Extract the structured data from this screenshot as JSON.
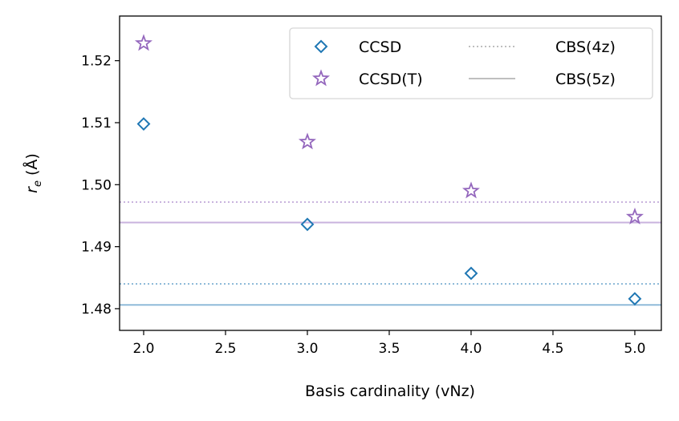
{
  "chart_data": {
    "type": "scatter",
    "xlabel": "Basis cardinality (vNz)",
    "ylabel": "r_e (Å)",
    "xlim": [
      1.853,
      5.162
    ],
    "ylim": [
      1.4765,
      1.5272
    ],
    "xticks": [
      "2.0",
      "2.5",
      "3.0",
      "3.5",
      "4.0",
      "4.5",
      "5.0"
    ],
    "yticks": [
      "1.48",
      "1.49",
      "1.50",
      "1.51",
      "1.52"
    ],
    "grid": false,
    "legend_position": "top-right",
    "series": [
      {
        "name": "CCSD",
        "marker": "diamond",
        "color": "#1f77b4",
        "x": [
          2,
          3,
          4,
          5
        ],
        "y": [
          1.5098,
          1.4936,
          1.4857,
          1.4816
        ]
      },
      {
        "name": "CCSD(T)",
        "marker": "star",
        "color": "#9467bd",
        "x": [
          2,
          3,
          4,
          5
        ],
        "y": [
          1.5228,
          1.5069,
          1.499,
          1.4948
        ]
      }
    ],
    "reference_lines": [
      {
        "series": "CCSD",
        "style": "dotted",
        "y": 1.484,
        "color": "#8fbbd9"
      },
      {
        "series": "CCSD",
        "style": "solid",
        "y": 1.4806,
        "color": "#8fbbd9"
      },
      {
        "series": "CCSD(T)",
        "style": "dotted",
        "y": 1.4972,
        "color": "#c9b3de"
      },
      {
        "series": "CCSD(T)",
        "style": "solid",
        "y": 1.4939,
        "color": "#c9b3de"
      }
    ],
    "legend": [
      {
        "label": "CCSD",
        "kind": "diamond",
        "color": "#1f77b4"
      },
      {
        "label": "CCSD(T)",
        "kind": "star",
        "color": "#9467bd"
      },
      {
        "label": "CBS(4z)",
        "kind": "dotted",
        "color": "#bfbfbf"
      },
      {
        "label": "CBS(5z)",
        "kind": "solid",
        "color": "#bfbfbf"
      }
    ]
  }
}
